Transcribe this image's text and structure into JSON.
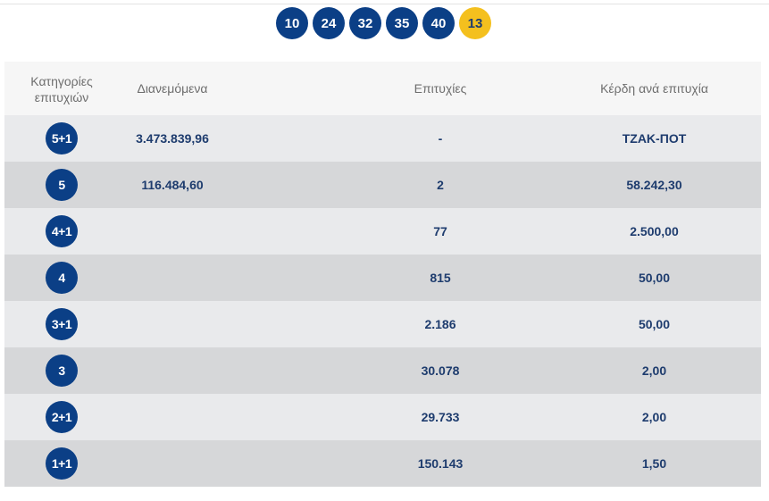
{
  "draw": {
    "numbers": [
      "10",
      "24",
      "32",
      "35",
      "40"
    ],
    "joker": "13"
  },
  "table": {
    "headers": {
      "category_line1": "Κατηγορίες",
      "category_line2": "επιτυχιών",
      "distributed": "Διανεμόμενα",
      "winners": "Επιτυχίες",
      "prize": "Κέρδη ανά επιτυχία"
    },
    "rows": [
      {
        "category": "5+1",
        "distributed": "3.473.839,96",
        "winners": "-",
        "prize": "ΤΖΑΚ-ΠΟΤ"
      },
      {
        "category": "5",
        "distributed": "116.484,60",
        "winners": "2",
        "prize": "58.242,30"
      },
      {
        "category": "4+1",
        "distributed": "",
        "winners": "77",
        "prize": "2.500,00"
      },
      {
        "category": "4",
        "distributed": "",
        "winners": "815",
        "prize": "50,00"
      },
      {
        "category": "3+1",
        "distributed": "",
        "winners": "2.186",
        "prize": "50,00"
      },
      {
        "category": "3",
        "distributed": "",
        "winners": "30.078",
        "prize": "2,00"
      },
      {
        "category": "2+1",
        "distributed": "",
        "winners": "29.733",
        "prize": "2,00"
      },
      {
        "category": "1+1",
        "distributed": "",
        "winners": "150.143",
        "prize": "1,50"
      }
    ]
  },
  "colors": {
    "ball_main": "#0b3f86",
    "ball_joker": "#f4c01e",
    "text_value": "#1e3c6e",
    "row_light": "#e9eaec",
    "row_dark": "#d6d7d9"
  }
}
